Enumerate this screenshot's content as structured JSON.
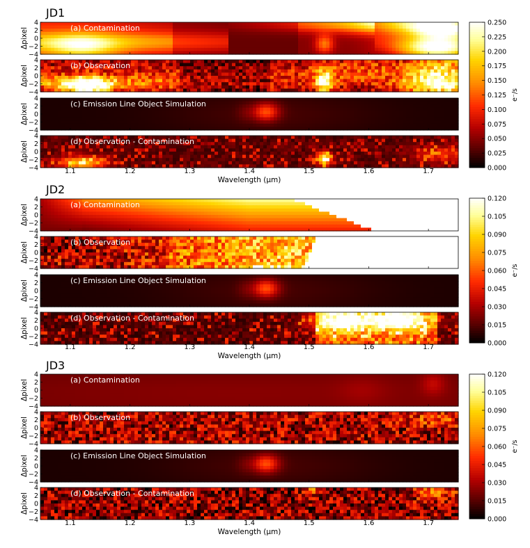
{
  "chart_data": {
    "type": "heatmap",
    "groups": [
      {
        "title": "JD1",
        "colorbar": {
          "label": "e⁻/s",
          "ticks": [
            "0.000",
            "0.025",
            "0.050",
            "0.075",
            "0.100",
            "0.125",
            "0.150",
            "0.175",
            "0.200",
            "0.225",
            "0.250"
          ],
          "range": [
            0,
            0.25
          ]
        },
        "panels": [
          {
            "label": "(a) Contamination",
            "kind": "contam1"
          },
          {
            "label": "(b) Observation",
            "kind": "obs1"
          },
          {
            "label": "(c) Emission Line Object Simulation",
            "kind": "sim"
          },
          {
            "label": "(d) Observation - Contamination",
            "kind": "resid1"
          }
        ],
        "xlabel": "Wavelength (μm)"
      },
      {
        "title": "JD2",
        "colorbar": {
          "label": "e⁻/s",
          "ticks": [
            "0.000",
            "0.015",
            "0.030",
            "0.045",
            "0.060",
            "0.075",
            "0.090",
            "0.105",
            "0.120"
          ],
          "range": [
            0,
            0.12
          ]
        },
        "panels": [
          {
            "label": "(a) Contamination",
            "kind": "contam2"
          },
          {
            "label": "(b) Observation",
            "kind": "obs2"
          },
          {
            "label": "(c) Emission Line Object Simulation",
            "kind": "sim"
          },
          {
            "label": "(d) Observation - Contamination",
            "kind": "resid2"
          }
        ],
        "xlabel": "Wavelength (μm)"
      },
      {
        "title": "JD3",
        "colorbar": {
          "label": "e⁻/s",
          "ticks": [
            "0.000",
            "0.015",
            "0.030",
            "0.045",
            "0.060",
            "0.075",
            "0.090",
            "0.105",
            "0.120"
          ],
          "range": [
            0,
            0.12
          ]
        },
        "panels": [
          {
            "label": "(a) Contamination",
            "kind": "contam3"
          },
          {
            "label": "(b) Observation",
            "kind": "obs3"
          },
          {
            "label": "(c) Emission Line Object Simulation",
            "kind": "sim"
          },
          {
            "label": "(d) Observation - Contamination",
            "kind": "resid3"
          }
        ],
        "xlabel": "Wavelength (μm)"
      }
    ],
    "ylabel": "Δpixel",
    "y_ticks": [
      "4",
      "2",
      "0",
      "−2",
      "−4"
    ],
    "ylim": [
      -4,
      4
    ],
    "x_ticks": [
      "1.1",
      "1.2",
      "1.3",
      "1.4",
      "1.5",
      "1.6",
      "1.7"
    ],
    "xlim": [
      1.05,
      1.75
    ],
    "colormap": [
      "#000000",
      "#5a0000",
      "#b40000",
      "#ff2a00",
      "#ff8c00",
      "#ffd400",
      "#ffff99",
      "#ffffff"
    ]
  }
}
